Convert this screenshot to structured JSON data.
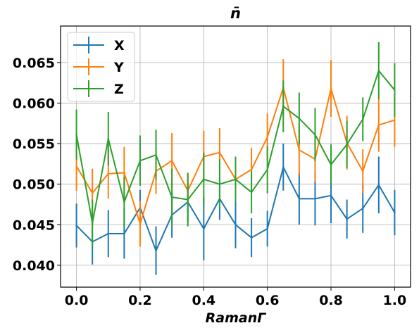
{
  "chart_data": {
    "type": "line",
    "title": "n̄",
    "xlabel": "RamanΓ",
    "ylabel": "",
    "xlim": [
      -0.05,
      1.05
    ],
    "ylim": [
      0.0373,
      0.0695
    ],
    "grid": true,
    "legend_position": "top-left",
    "xticks": [
      0.0,
      0.2,
      0.4,
      0.6,
      0.8,
      1.0
    ],
    "xtick_labels": [
      "0.0",
      "0.2",
      "0.4",
      "0.6",
      "0.8",
      "1.0"
    ],
    "yticks": [
      0.04,
      0.045,
      0.05,
      0.055,
      0.06,
      0.065
    ],
    "ytick_labels": [
      "0.040",
      "0.045",
      "0.050",
      "0.055",
      "0.060",
      "0.065"
    ],
    "x": [
      0.0,
      0.05,
      0.1,
      0.15,
      0.2,
      0.25,
      0.3,
      0.35,
      0.4,
      0.45,
      0.5,
      0.55,
      0.6,
      0.65,
      0.7,
      0.75,
      0.8,
      0.85,
      0.9,
      0.95,
      1.0
    ],
    "series": [
      {
        "name": "X",
        "color": "#1f77b4",
        "values": [
          0.0449,
          0.0429,
          0.0439,
          0.0439,
          0.0471,
          0.0418,
          0.0462,
          0.0478,
          0.0445,
          0.0482,
          0.045,
          0.0434,
          0.0445,
          0.0521,
          0.0482,
          0.0482,
          0.0486,
          0.0457,
          0.047,
          0.0499,
          0.0465
        ],
        "errors": [
          0.0027,
          0.0028,
          0.0029,
          0.0031,
          0.0022,
          0.003,
          0.0028,
          0.0024,
          0.0039,
          0.0026,
          0.0029,
          0.0024,
          0.0022,
          0.0029,
          0.0032,
          0.0033,
          0.0034,
          0.0024,
          0.003,
          0.0035,
          0.0028
        ]
      },
      {
        "name": "Y",
        "color": "#ff7f0e",
        "values": [
          0.0522,
          0.0489,
          0.0513,
          0.0514,
          0.0451,
          0.0516,
          0.0529,
          0.0492,
          0.0534,
          0.0539,
          0.0506,
          0.0518,
          0.0558,
          0.0619,
          0.0542,
          0.0531,
          0.0618,
          0.0551,
          0.0516,
          0.0573,
          0.0579
        ],
        "errors": [
          0.003,
          0.003,
          0.0031,
          0.0032,
          0.0028,
          0.0028,
          0.0034,
          0.0021,
          0.0032,
          0.003,
          0.0025,
          0.0027,
          0.0029,
          0.0035,
          0.0031,
          0.0028,
          0.0035,
          0.0033,
          0.0027,
          0.0033,
          0.0033
        ]
      },
      {
        "name": "Z",
        "color": "#2ca02c",
        "values": [
          0.0561,
          0.0452,
          0.0556,
          0.0478,
          0.0529,
          0.0536,
          0.0484,
          0.0481,
          0.0506,
          0.05,
          0.0506,
          0.049,
          0.0518,
          0.0596,
          0.0581,
          0.0561,
          0.0524,
          0.0549,
          0.058,
          0.064,
          0.0616
        ],
        "errors": [
          0.0031,
          0.0029,
          0.0033,
          0.0031,
          0.0031,
          0.0031,
          0.0035,
          0.0033,
          0.0033,
          0.0031,
          0.0028,
          0.0026,
          0.0029,
          0.0032,
          0.0032,
          0.0033,
          0.0025,
          0.0029,
          0.0027,
          0.0035,
          0.0033
        ]
      }
    ]
  }
}
